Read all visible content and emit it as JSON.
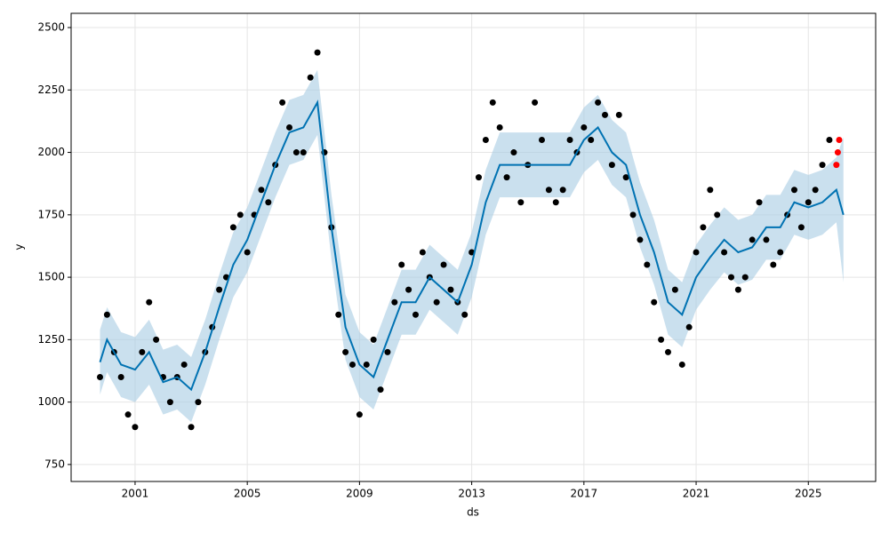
{
  "chart_data": {
    "type": "line",
    "x_label": "ds",
    "y_label": "y",
    "xlim": [
      1998.72,
      2027.4
    ],
    "ylim": [
      682,
      2557
    ],
    "xticks": [
      2001,
      2005,
      2009,
      2013,
      2017,
      2021,
      2025
    ],
    "yticks": [
      750,
      1000,
      1250,
      1500,
      1750,
      2000,
      2250,
      2500
    ],
    "grid": true,
    "forecast": {
      "color": "#0072b2",
      "band_color": "#a6cbe3",
      "x": [
        1999.75,
        2000.0,
        2000.5,
        2001.0,
        2001.5,
        2002.0,
        2002.5,
        2003.0,
        2003.5,
        2004.0,
        2004.5,
        2005.0,
        2005.5,
        2006.0,
        2006.5,
        2007.0,
        2007.5,
        2008.0,
        2008.5,
        2009.0,
        2009.5,
        2010.0,
        2010.5,
        2011.0,
        2011.5,
        2012.0,
        2012.5,
        2013.0,
        2013.5,
        2014.0,
        2014.5,
        2015.0,
        2015.5,
        2016.0,
        2016.5,
        2017.0,
        2017.5,
        2018.0,
        2018.5,
        2019.0,
        2019.5,
        2020.0,
        2020.5,
        2021.0,
        2021.5,
        2022.0,
        2022.5,
        2023.0,
        2023.5,
        2024.0,
        2024.5,
        2025.0,
        2025.5,
        2026.0,
        2026.25
      ],
      "values": [
        1160,
        1250,
        1150,
        1130,
        1200,
        1080,
        1100,
        1050,
        1200,
        1380,
        1550,
        1650,
        1800,
        1950,
        2080,
        2100,
        2200,
        1700,
        1300,
        1150,
        1100,
        1250,
        1400,
        1400,
        1500,
        1450,
        1400,
        1550,
        1800,
        1950,
        1950,
        1950,
        1950,
        1950,
        1950,
        2050,
        2100,
        2000,
        1950,
        1750,
        1600,
        1400,
        1350,
        1500,
        1580,
        1650,
        1600,
        1620,
        1700,
        1700,
        1800,
        1780,
        1800,
        1850,
        1750
      ],
      "lower": [
        1030,
        1120,
        1020,
        1000,
        1070,
        950,
        970,
        920,
        1070,
        1250,
        1420,
        1520,
        1670,
        1820,
        1950,
        1970,
        2070,
        1570,
        1170,
        1020,
        970,
        1120,
        1270,
        1270,
        1370,
        1320,
        1270,
        1420,
        1670,
        1820,
        1820,
        1820,
        1820,
        1820,
        1820,
        1920,
        1970,
        1870,
        1820,
        1620,
        1470,
        1270,
        1220,
        1370,
        1450,
        1520,
        1470,
        1490,
        1570,
        1570,
        1670,
        1650,
        1670,
        1720,
        1480
      ],
      "upper": [
        1290,
        1380,
        1280,
        1260,
        1330,
        1210,
        1230,
        1180,
        1330,
        1510,
        1680,
        1780,
        1930,
        2080,
        2210,
        2230,
        2330,
        1830,
        1430,
        1280,
        1230,
        1380,
        1530,
        1530,
        1630,
        1580,
        1530,
        1680,
        1930,
        2080,
        2080,
        2080,
        2080,
        2080,
        2080,
        2180,
        2230,
        2130,
        2080,
        1880,
        1730,
        1530,
        1480,
        1630,
        1710,
        1780,
        1730,
        1750,
        1830,
        1830,
        1930,
        1910,
        1930,
        1980,
        2060
      ]
    },
    "observed": {
      "color": "#000000",
      "x": [
        1999.75,
        2000.0,
        2000.25,
        2000.5,
        2000.75,
        2001.0,
        2001.25,
        2001.5,
        2001.75,
        2002.0,
        2002.25,
        2002.5,
        2002.75,
        2003.0,
        2003.25,
        2003.5,
        2003.75,
        2004.0,
        2004.25,
        2004.5,
        2004.75,
        2005.0,
        2005.25,
        2005.5,
        2005.75,
        2006.0,
        2006.25,
        2006.5,
        2006.75,
        2007.0,
        2007.25,
        2007.5,
        2007.75,
        2008.0,
        2008.25,
        2008.5,
        2008.75,
        2009.0,
        2009.25,
        2009.5,
        2009.75,
        2010.0,
        2010.25,
        2010.5,
        2010.75,
        2011.0,
        2011.25,
        2011.5,
        2011.75,
        2012.0,
        2012.25,
        2012.5,
        2012.75,
        2013.0,
        2013.25,
        2013.5,
        2013.75,
        2014.0,
        2014.25,
        2014.5,
        2014.75,
        2015.0,
        2015.25,
        2015.5,
        2015.75,
        2016.0,
        2016.25,
        2016.5,
        2016.75,
        2017.0,
        2017.25,
        2017.5,
        2017.75,
        2018.0,
        2018.25,
        2018.5,
        2018.75,
        2019.0,
        2019.25,
        2019.5,
        2019.75,
        2020.0,
        2020.25,
        2020.5,
        2020.75,
        2021.0,
        2021.25,
        2021.5,
        2021.75,
        2022.0,
        2022.25,
        2022.5,
        2022.75,
        2023.0,
        2023.25,
        2023.5,
        2023.75,
        2024.0,
        2024.25,
        2024.5,
        2024.75,
        2025.0,
        2025.25,
        2025.5,
        2025.75
      ],
      "values": [
        1100,
        1350,
        1200,
        1100,
        950,
        900,
        1200,
        1400,
        1250,
        1100,
        1000,
        1100,
        1150,
        900,
        1000,
        1200,
        1300,
        1450,
        1500,
        1700,
        1750,
        1600,
        1750,
        1850,
        1800,
        1950,
        2200,
        2100,
        2000,
        2000,
        2300,
        2400,
        2000,
        1700,
        1350,
        1200,
        1150,
        950,
        1150,
        1250,
        1050,
        1200,
        1400,
        1550,
        1450,
        1350,
        1600,
        1500,
        1400,
        1550,
        1450,
        1400,
        1350,
        1600,
        1900,
        2050,
        2200,
        2100,
        1900,
        2000,
        1800,
        1950,
        2200,
        2050,
        1850,
        1800,
        1850,
        2050,
        2000,
        2100,
        2050,
        2200,
        2150,
        1950,
        2150,
        1900,
        1750,
        1650,
        1550,
        1400,
        1250,
        1200,
        1450,
        1150,
        1300,
        1600,
        1700,
        1850,
        1750,
        1600,
        1500,
        1450,
        1500,
        1650,
        1800,
        1650,
        1550,
        1600,
        1750,
        1850,
        1700,
        1800,
        1850,
        1950,
        2050
      ]
    },
    "recent": {
      "color": "#ff0000",
      "x": [
        2026.0,
        2026.05,
        2026.1
      ],
      "values": [
        1950,
        2000,
        2050
      ]
    }
  }
}
